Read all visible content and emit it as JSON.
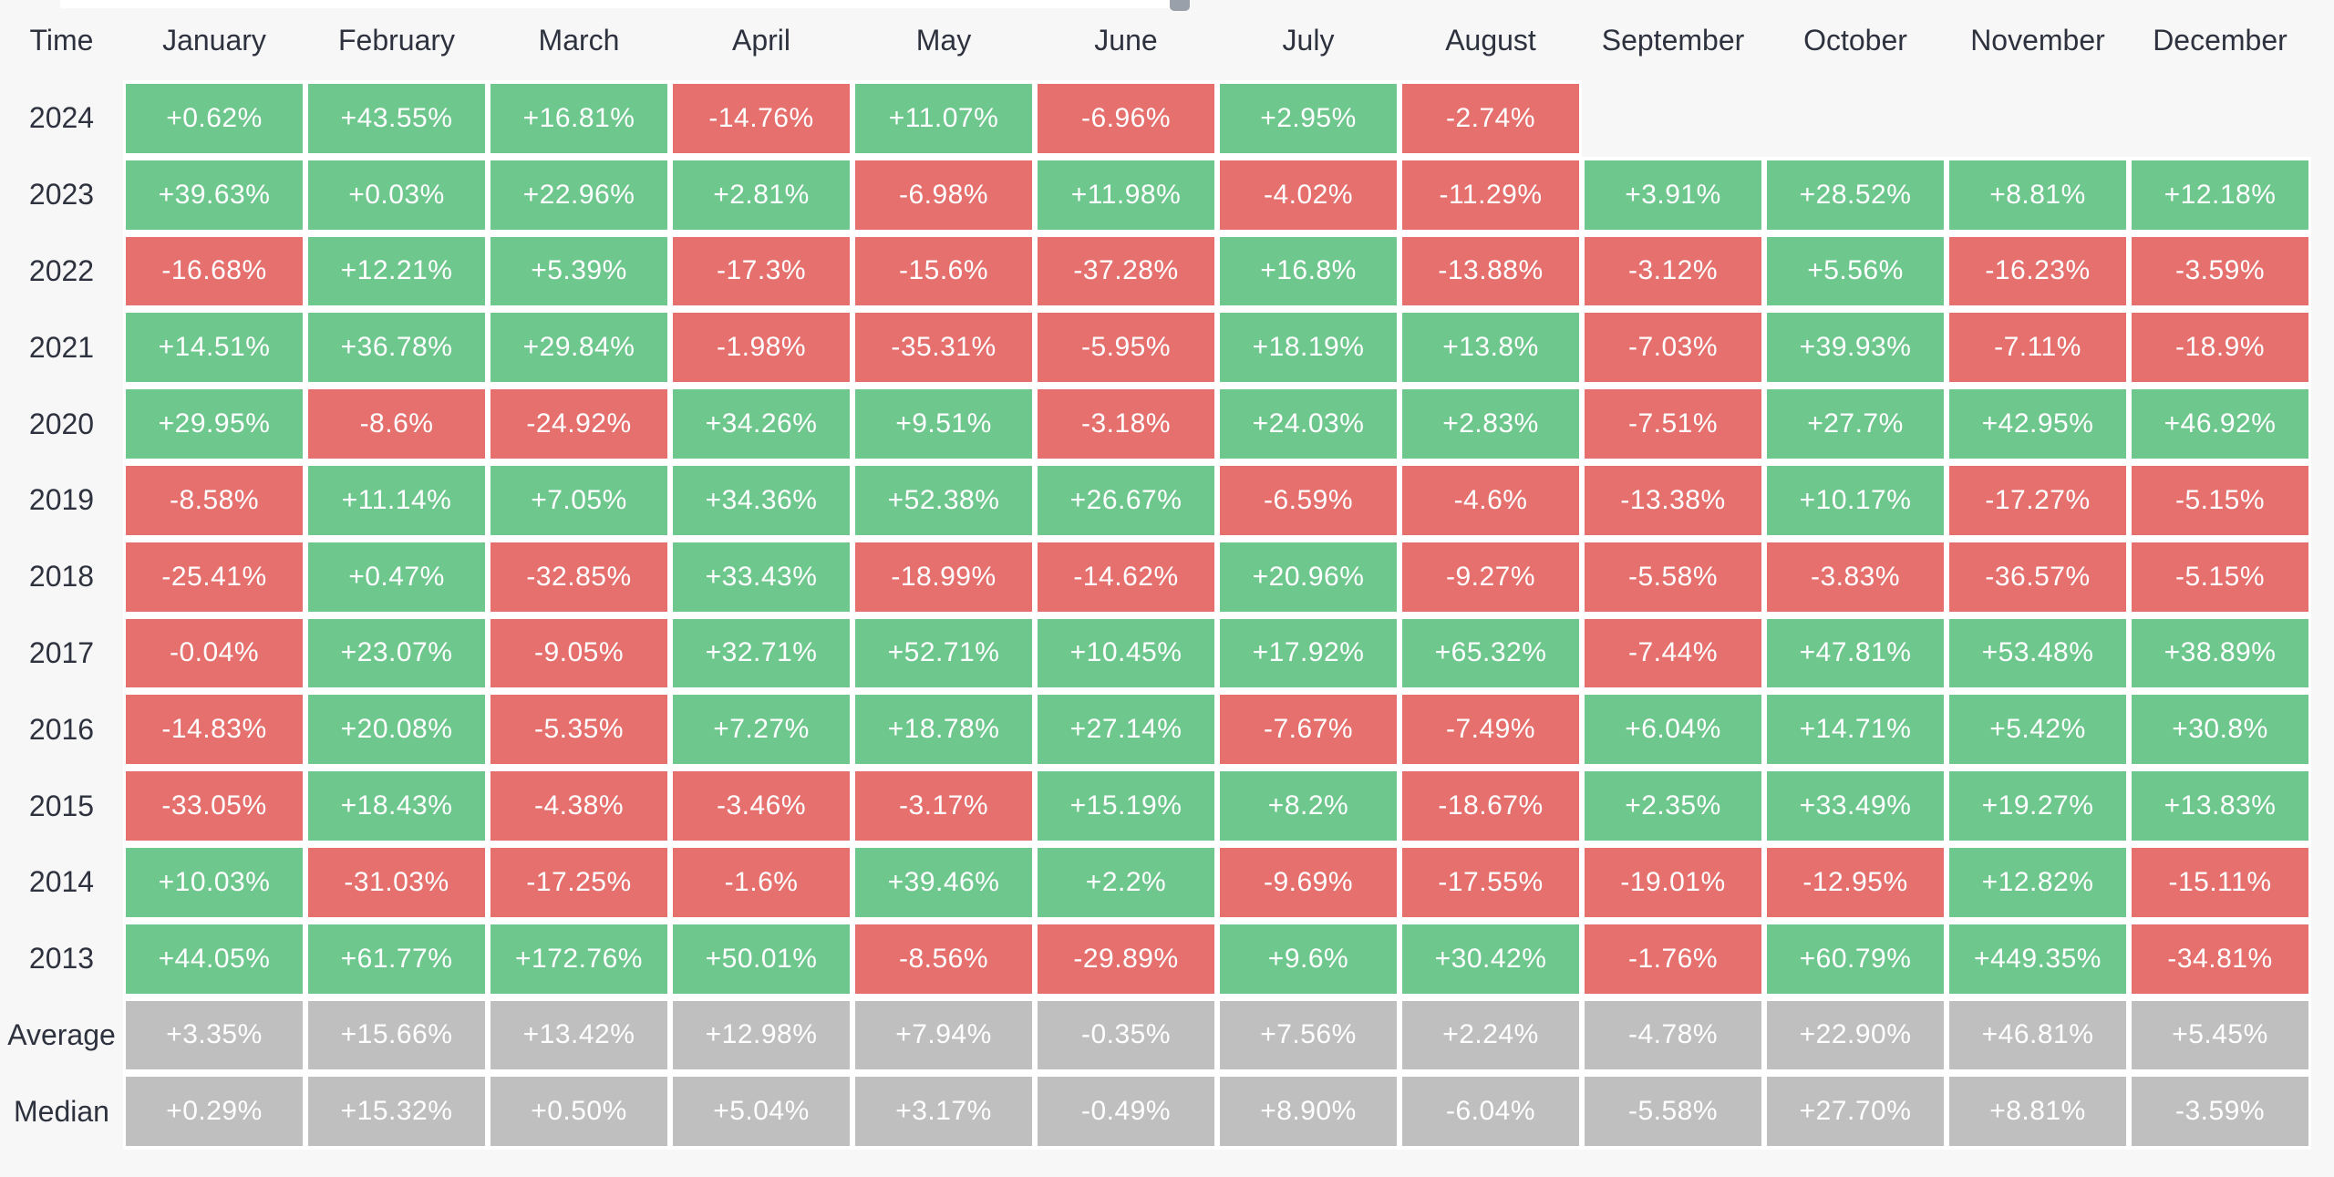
{
  "table": {
    "corner_label": "Time",
    "months": [
      "January",
      "February",
      "March",
      "April",
      "May",
      "June",
      "July",
      "August",
      "September",
      "October",
      "November",
      "December"
    ],
    "rows": [
      {
        "label": "2024",
        "type": "year",
        "cells": [
          "+0.62%",
          "+43.55%",
          "+16.81%",
          "-14.76%",
          "+11.07%",
          "-6.96%",
          "+2.95%",
          "-2.74%",
          null,
          null,
          null,
          null
        ]
      },
      {
        "label": "2023",
        "type": "year",
        "cells": [
          "+39.63%",
          "+0.03%",
          "+22.96%",
          "+2.81%",
          "-6.98%",
          "+11.98%",
          "-4.02%",
          "-11.29%",
          "+3.91%",
          "+28.52%",
          "+8.81%",
          "+12.18%"
        ]
      },
      {
        "label": "2022",
        "type": "year",
        "cells": [
          "-16.68%",
          "+12.21%",
          "+5.39%",
          "-17.3%",
          "-15.6%",
          "-37.28%",
          "+16.8%",
          "-13.88%",
          "-3.12%",
          "+5.56%",
          "-16.23%",
          "-3.59%"
        ]
      },
      {
        "label": "2021",
        "type": "year",
        "cells": [
          "+14.51%",
          "+36.78%",
          "+29.84%",
          "-1.98%",
          "-35.31%",
          "-5.95%",
          "+18.19%",
          "+13.8%",
          "-7.03%",
          "+39.93%",
          "-7.11%",
          "-18.9%"
        ]
      },
      {
        "label": "2020",
        "type": "year",
        "cells": [
          "+29.95%",
          "-8.6%",
          "-24.92%",
          "+34.26%",
          "+9.51%",
          "-3.18%",
          "+24.03%",
          "+2.83%",
          "-7.51%",
          "+27.7%",
          "+42.95%",
          "+46.92%"
        ]
      },
      {
        "label": "2019",
        "type": "year",
        "cells": [
          "-8.58%",
          "+11.14%",
          "+7.05%",
          "+34.36%",
          "+52.38%",
          "+26.67%",
          "-6.59%",
          "-4.6%",
          "-13.38%",
          "+10.17%",
          "-17.27%",
          "-5.15%"
        ]
      },
      {
        "label": "2018",
        "type": "year",
        "cells": [
          "-25.41%",
          "+0.47%",
          "-32.85%",
          "+33.43%",
          "-18.99%",
          "-14.62%",
          "+20.96%",
          "-9.27%",
          "-5.58%",
          "-3.83%",
          "-36.57%",
          "-5.15%"
        ]
      },
      {
        "label": "2017",
        "type": "year",
        "cells": [
          "-0.04%",
          "+23.07%",
          "-9.05%",
          "+32.71%",
          "+52.71%",
          "+10.45%",
          "+17.92%",
          "+65.32%",
          "-7.44%",
          "+47.81%",
          "+53.48%",
          "+38.89%"
        ]
      },
      {
        "label": "2016",
        "type": "year",
        "cells": [
          "-14.83%",
          "+20.08%",
          "-5.35%",
          "+7.27%",
          "+18.78%",
          "+27.14%",
          "-7.67%",
          "-7.49%",
          "+6.04%",
          "+14.71%",
          "+5.42%",
          "+30.8%"
        ]
      },
      {
        "label": "2015",
        "type": "year",
        "cells": [
          "-33.05%",
          "+18.43%",
          "-4.38%",
          "-3.46%",
          "-3.17%",
          "+15.19%",
          "+8.2%",
          "-18.67%",
          "+2.35%",
          "+33.49%",
          "+19.27%",
          "+13.83%"
        ]
      },
      {
        "label": "2014",
        "type": "year",
        "cells": [
          "+10.03%",
          "-31.03%",
          "-17.25%",
          "-1.6%",
          "+39.46%",
          "+2.2%",
          "-9.69%",
          "-17.55%",
          "-19.01%",
          "-12.95%",
          "+12.82%",
          "-15.11%"
        ]
      },
      {
        "label": "2013",
        "type": "year",
        "cells": [
          "+44.05%",
          "+61.77%",
          "+172.76%",
          "+50.01%",
          "-8.56%",
          "-29.89%",
          "+9.6%",
          "+30.42%",
          "-1.76%",
          "+60.79%",
          "+449.35%",
          "-34.81%"
        ]
      },
      {
        "label": "Average",
        "type": "stat",
        "cells": [
          "+3.35%",
          "+15.66%",
          "+13.42%",
          "+12.98%",
          "+7.94%",
          "-0.35%",
          "+7.56%",
          "+2.24%",
          "-4.78%",
          "+22.90%",
          "+46.81%",
          "+5.45%"
        ]
      },
      {
        "label": "Median",
        "type": "stat",
        "cells": [
          "+0.29%",
          "+15.32%",
          "+0.50%",
          "+5.04%",
          "+3.17%",
          "-0.49%",
          "+8.90%",
          "-6.04%",
          "-5.58%",
          "+27.70%",
          "+8.81%",
          "-3.59%"
        ]
      }
    ]
  },
  "colors": {
    "positive": "#6ec78d",
    "negative": "#e5706d",
    "neutral": "#bfbfbf",
    "page_background": "#f7f7f7",
    "gap": "#ffffff",
    "cell_text": "#ffffff",
    "label_text": "#2d323e"
  },
  "chart_data": {
    "type": "heatmap",
    "title": "",
    "columns": [
      "January",
      "February",
      "March",
      "April",
      "May",
      "June",
      "July",
      "August",
      "September",
      "October",
      "November",
      "December"
    ],
    "rows": [
      "2024",
      "2023",
      "2022",
      "2021",
      "2020",
      "2019",
      "2018",
      "2017",
      "2016",
      "2015",
      "2014",
      "2013",
      "Average",
      "Median"
    ],
    "values_percent": [
      [
        0.62,
        43.55,
        16.81,
        -14.76,
        11.07,
        -6.96,
        2.95,
        -2.74,
        null,
        null,
        null,
        null
      ],
      [
        39.63,
        0.03,
        22.96,
        2.81,
        -6.98,
        11.98,
        -4.02,
        -11.29,
        3.91,
        28.52,
        8.81,
        12.18
      ],
      [
        -16.68,
        12.21,
        5.39,
        -17.3,
        -15.6,
        -37.28,
        16.8,
        -13.88,
        -3.12,
        5.56,
        -16.23,
        -3.59
      ],
      [
        14.51,
        36.78,
        29.84,
        -1.98,
        -35.31,
        -5.95,
        18.19,
        13.8,
        -7.03,
        39.93,
        -7.11,
        -18.9
      ],
      [
        29.95,
        -8.6,
        -24.92,
        34.26,
        9.51,
        -3.18,
        24.03,
        2.83,
        -7.51,
        27.7,
        42.95,
        46.92
      ],
      [
        -8.58,
        11.14,
        7.05,
        34.36,
        52.38,
        26.67,
        -6.59,
        -4.6,
        -13.38,
        10.17,
        -17.27,
        -5.15
      ],
      [
        -25.41,
        0.47,
        -32.85,
        33.43,
        -18.99,
        -14.62,
        20.96,
        -9.27,
        -5.58,
        -3.83,
        -36.57,
        -5.15
      ],
      [
        -0.04,
        23.07,
        -9.05,
        32.71,
        52.71,
        10.45,
        17.92,
        65.32,
        -7.44,
        47.81,
        53.48,
        38.89
      ],
      [
        -14.83,
        20.08,
        -5.35,
        7.27,
        18.78,
        27.14,
        -7.67,
        -7.49,
        6.04,
        14.71,
        5.42,
        30.8
      ],
      [
        -33.05,
        18.43,
        -4.38,
        -3.46,
        -3.17,
        15.19,
        8.2,
        -18.67,
        2.35,
        33.49,
        19.27,
        13.83
      ],
      [
        10.03,
        -31.03,
        -17.25,
        -1.6,
        39.46,
        2.2,
        -9.69,
        -17.55,
        -19.01,
        -12.95,
        12.82,
        -15.11
      ],
      [
        44.05,
        61.77,
        172.76,
        50.01,
        -8.56,
        -29.89,
        9.6,
        30.42,
        -1.76,
        60.79,
        449.35,
        -34.81
      ],
      [
        3.35,
        15.66,
        13.42,
        12.98,
        7.94,
        -0.35,
        7.56,
        2.24,
        -4.78,
        22.9,
        46.81,
        5.45
      ],
      [
        0.29,
        15.32,
        0.5,
        5.04,
        3.17,
        -0.49,
        8.9,
        -6.04,
        -5.58,
        27.7,
        8.81,
        -3.59
      ]
    ],
    "legend": "green = positive month, red = negative month, gray = Average/Median summary rows",
    "grid": false,
    "legend_position": "none"
  }
}
